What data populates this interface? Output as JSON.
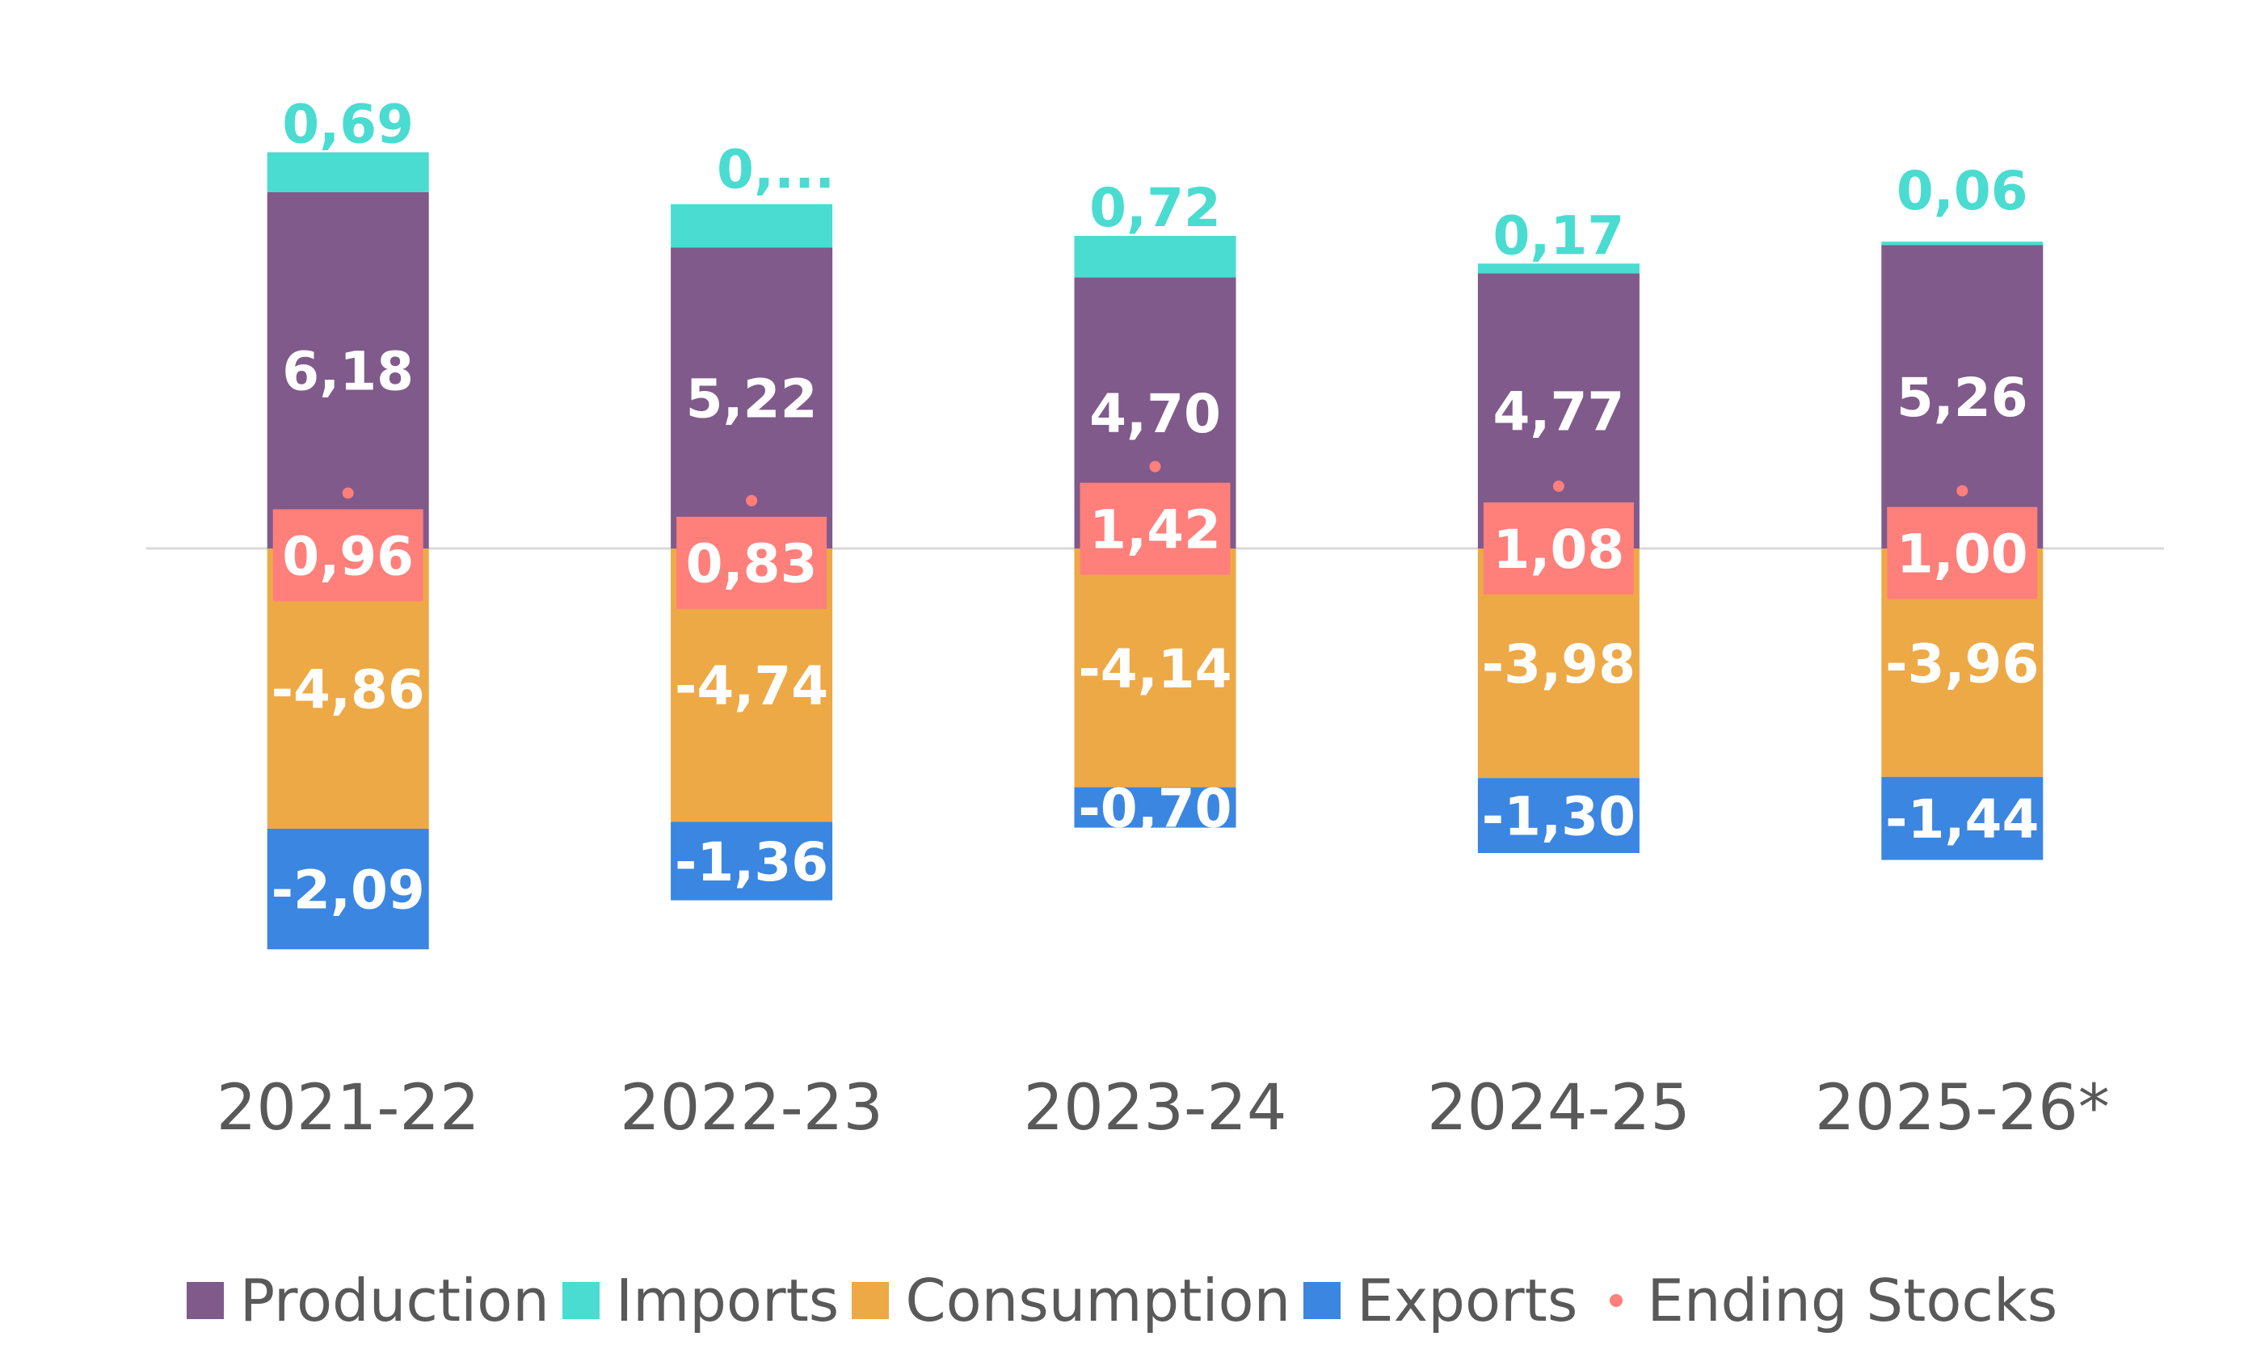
{
  "chart_data": {
    "type": "bar",
    "stacked": true,
    "title": "",
    "xlabel": "",
    "ylabel": "",
    "categories": [
      "2021-22",
      "2022-23",
      "2023-24",
      "2024-25",
      "2025-26*"
    ],
    "series": [
      {
        "name": "Production",
        "kind": "bar",
        "color": "#7F5A8B",
        "values": [
          6.18,
          5.22,
          4.7,
          4.77,
          5.26
        ],
        "labels": [
          "6,18",
          "5,22",
          "4,70",
          "4,77",
          "5,26"
        ]
      },
      {
        "name": "Imports",
        "kind": "bar",
        "color": "#4ADCD0",
        "values": [
          0.69,
          0.75,
          0.72,
          0.17,
          0.06
        ],
        "labels": [
          "0,69",
          "0,...",
          "0,72",
          "0,17",
          "0,06"
        ]
      },
      {
        "name": "Consumption",
        "kind": "bar",
        "color": "#EDA946",
        "values": [
          -4.86,
          -4.74,
          -4.14,
          -3.98,
          -3.96
        ],
        "labels": [
          "-4,86",
          "-4,74",
          "-4,14",
          "-3,98",
          "-3,96"
        ]
      },
      {
        "name": "Exports",
        "kind": "bar",
        "color": "#3B86E0",
        "values": [
          -2.09,
          -1.36,
          -0.7,
          -1.3,
          -1.44
        ],
        "labels": [
          "-2,09",
          "-1,36",
          "-0,70",
          "-1,30",
          "-1,44"
        ]
      },
      {
        "name": "Ending Stocks",
        "kind": "point",
        "color": "#FF7F7B",
        "values": [
          0.96,
          0.83,
          1.42,
          1.08,
          1.0
        ],
        "labels": [
          "0,96",
          "0,83",
          "1,42",
          "1,08",
          "1,00"
        ]
      }
    ],
    "ylim": [
      -3.5,
      9.5
    ],
    "grid": false,
    "zero_line": true,
    "legend": {
      "position": "bottom",
      "entries": [
        "Production",
        "Imports",
        "Consumption",
        "Exports",
        "Ending Stocks"
      ]
    }
  },
  "colors": {
    "text": "#595959",
    "zero_line": "#D9D9D9",
    "label_light": "#FFFFFF"
  }
}
